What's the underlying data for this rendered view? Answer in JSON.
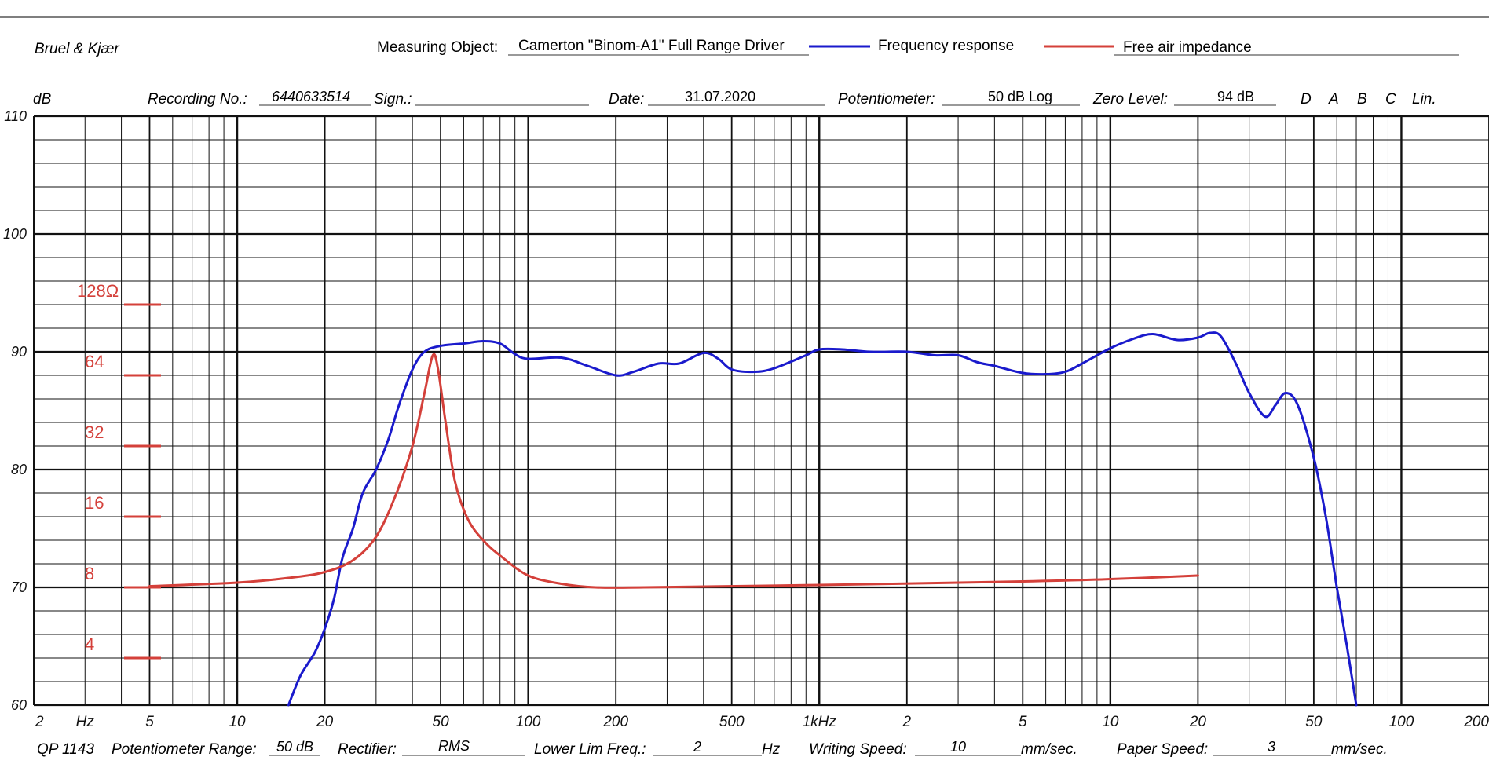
{
  "header": {
    "brand": "Bruel & Kjær",
    "measuring_object_label": "Measuring Object:",
    "measuring_object_value": "Camerton \"Binom-A1\" Full Range Driver",
    "recording_label": "Recording  No.:",
    "recording_value": "6440633514",
    "sign_label": "Sign.:",
    "date_label": "Date:",
    "date_value": "31.07.2020",
    "potentiometer_label": "Potentiometer:",
    "potentiometer_value": "50 dB Log",
    "zero_level_label": "Zero Level:",
    "zero_level_value": "94 dB",
    "weightings": [
      "D",
      "A",
      "B",
      "C",
      "Lin."
    ]
  },
  "footer": {
    "code": "QP 1143",
    "pot_range_label": "Potentiometer Range:",
    "pot_range_value": "50 dB",
    "rectifier_label": "Rectifier:",
    "rectifier_value": "RMS",
    "lower_lim_label": "Lower Lim Freq.:",
    "lower_lim_value": "2",
    "lower_lim_unit": "Hz",
    "writing_speed_label": "Writing Speed:",
    "writing_speed_value": "10",
    "writing_speed_unit": "mm/sec.",
    "paper_speed_label": "Paper Speed:",
    "paper_speed_value": "3",
    "paper_speed_unit": "mm/sec."
  },
  "chart_data": {
    "type": "line",
    "title": "Camerton \"Binom-A1\" Full Range Driver",
    "ylabel": "dB",
    "xlabel": "Hz",
    "xscale": "log",
    "xlim": [
      2,
      200000
    ],
    "ylim": [
      60,
      110
    ],
    "grid": true,
    "y_ticks": [
      60,
      70,
      80,
      90,
      100,
      110
    ],
    "x_tick_labels": [
      {
        "f": 2,
        "label": "2"
      },
      {
        "f": 3,
        "label": "Hz"
      },
      {
        "f": 5,
        "label": "5"
      },
      {
        "f": 10,
        "label": "10"
      },
      {
        "f": 20,
        "label": "20"
      },
      {
        "f": 50,
        "label": "50"
      },
      {
        "f": 100,
        "label": "100"
      },
      {
        "f": 200,
        "label": "200"
      },
      {
        "f": 500,
        "label": "500"
      },
      {
        "f": 1000,
        "label": "1kHz"
      },
      {
        "f": 2000,
        "label": "2"
      },
      {
        "f": 5000,
        "label": "5"
      },
      {
        "f": 10000,
        "label": "10"
      },
      {
        "f": 20000,
        "label": "20"
      },
      {
        "f": 50000,
        "label": "50"
      },
      {
        "f": 100000,
        "label": "100"
      },
      {
        "f": 200000,
        "label": "200"
      }
    ],
    "impedance_axis": [
      {
        "label": "128Ω",
        "db": 94
      },
      {
        "label": "64",
        "db": 88
      },
      {
        "label": "32",
        "db": 82
      },
      {
        "label": "16",
        "db": 76
      },
      {
        "label": "8",
        "db": 70
      },
      {
        "label": "4",
        "db": 64
      }
    ],
    "legend": [
      {
        "name": "Frequency response",
        "color": "#1a1acc"
      },
      {
        "name": "Free air impedance",
        "color": "#d4403a"
      }
    ],
    "series": [
      {
        "name": "Frequency response",
        "color": "#1a1acc",
        "points": [
          [
            15,
            60
          ],
          [
            16.5,
            62.5
          ],
          [
            18.5,
            64.5
          ],
          [
            20,
            66.5
          ],
          [
            21.5,
            69
          ],
          [
            23,
            72.5
          ],
          [
            25,
            75
          ],
          [
            27,
            78
          ],
          [
            30,
            80
          ],
          [
            33,
            82.5
          ],
          [
            36,
            85.5
          ],
          [
            40,
            88.5
          ],
          [
            44,
            90
          ],
          [
            50,
            90.5
          ],
          [
            60,
            90.7
          ],
          [
            70,
            90.9
          ],
          [
            80,
            90.7
          ],
          [
            90,
            89.8
          ],
          [
            100,
            89.4
          ],
          [
            130,
            89.5
          ],
          [
            160,
            88.8
          ],
          [
            200,
            88
          ],
          [
            230,
            88.3
          ],
          [
            280,
            89
          ],
          [
            330,
            89
          ],
          [
            400,
            89.9
          ],
          [
            450,
            89.4
          ],
          [
            500,
            88.5
          ],
          [
            600,
            88.3
          ],
          [
            700,
            88.6
          ],
          [
            900,
            89.7
          ],
          [
            1000,
            90.2
          ],
          [
            1200,
            90.2
          ],
          [
            1500,
            90
          ],
          [
            2000,
            90
          ],
          [
            2500,
            89.7
          ],
          [
            3000,
            89.7
          ],
          [
            3500,
            89.1
          ],
          [
            4000,
            88.8
          ],
          [
            5000,
            88.2
          ],
          [
            6000,
            88.1
          ],
          [
            7000,
            88.3
          ],
          [
            8000,
            89
          ],
          [
            10000,
            90.3
          ],
          [
            12000,
            91.1
          ],
          [
            14000,
            91.5
          ],
          [
            17000,
            91
          ],
          [
            20000,
            91.2
          ],
          [
            22000,
            91.6
          ],
          [
            24000,
            91.3
          ],
          [
            27000,
            89
          ],
          [
            30000,
            86.5
          ],
          [
            34000,
            84.5
          ],
          [
            37000,
            85.5
          ],
          [
            40000,
            86.5
          ],
          [
            44000,
            85.5
          ],
          [
            50000,
            81
          ],
          [
            55000,
            76
          ],
          [
            60000,
            70
          ],
          [
            65000,
            65
          ],
          [
            70000,
            60
          ]
        ]
      },
      {
        "name": "Free air impedance",
        "color": "#d4403a",
        "points": [
          [
            5,
            70.1
          ],
          [
            10,
            70.4
          ],
          [
            15,
            70.8
          ],
          [
            20,
            71.3
          ],
          [
            25,
            72.3
          ],
          [
            30,
            74.3
          ],
          [
            35,
            77.8
          ],
          [
            40,
            82
          ],
          [
            44,
            86.5
          ],
          [
            47,
            89.7
          ],
          [
            49,
            88.5
          ],
          [
            52,
            84
          ],
          [
            56,
            79
          ],
          [
            62,
            75.8
          ],
          [
            70,
            74
          ],
          [
            80,
            72.7
          ],
          [
            100,
            71
          ],
          [
            130,
            70.3
          ],
          [
            170,
            70
          ],
          [
            250,
            70
          ],
          [
            1000,
            70.2
          ],
          [
            5000,
            70.5
          ],
          [
            10000,
            70.7
          ],
          [
            20000,
            71
          ]
        ]
      }
    ]
  }
}
